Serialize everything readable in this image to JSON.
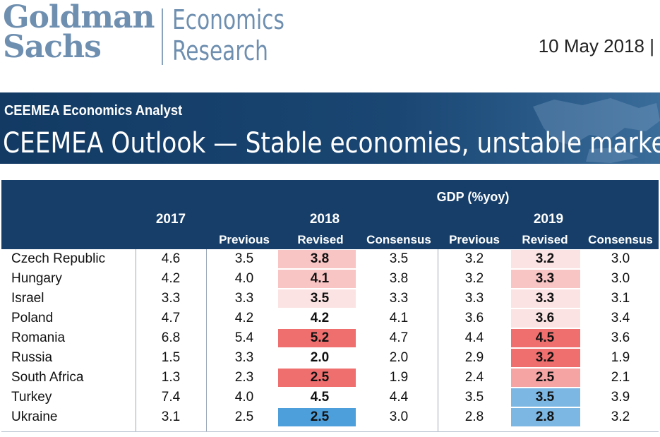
{
  "header": {
    "logo_line1": "Goldman",
    "logo_line2": "Sachs",
    "division_line1": "Economics",
    "division_line2": "Research",
    "date": "10 May 2018 |"
  },
  "banner": {
    "series": "CEEMEA Economics Analyst",
    "headline": "CEEMEA Outlook — Stable economies, unstable markets"
  },
  "table": {
    "group_title": "GDP (%yoy)",
    "years": {
      "y2017": "2017",
      "y2018": "2018",
      "y2019": "2019"
    },
    "subheaders": {
      "prev2018": "Previous",
      "rev2018": "Revised",
      "cons2018": "Consensus",
      "prev2019": "Previous",
      "rev2019": "Revised",
      "cons2019": "Consensus"
    },
    "highlight_colors": {
      "red_strong": "#ef6f6f",
      "red_medium": "#f5a3a3",
      "red_light": "#f8c4c4",
      "red_faint": "#fbe3e3",
      "blue_strong": "#4d9fdc",
      "blue_light": "#7cb6e3"
    },
    "rows": [
      {
        "country": "Czech Republic",
        "v2017": "4.6",
        "prev2018": "3.5",
        "rev2018": "3.8",
        "cons2018": "3.5",
        "prev2019": "3.2",
        "rev2019": "3.2",
        "cons2019": "3.0",
        "hl2018": "#f8c4c4",
        "hl2019": "#fbe3e3"
      },
      {
        "country": "Hungary",
        "v2017": "4.2",
        "prev2018": "4.0",
        "rev2018": "4.1",
        "cons2018": "3.8",
        "prev2019": "3.2",
        "rev2019": "3.3",
        "cons2019": "3.0",
        "hl2018": "#f8c4c4",
        "hl2019": "#f8c4c4"
      },
      {
        "country": "Israel",
        "v2017": "3.3",
        "prev2018": "3.3",
        "rev2018": "3.5",
        "cons2018": "3.3",
        "prev2019": "3.3",
        "rev2019": "3.3",
        "cons2019": "3.1",
        "hl2018": "#fbe3e3",
        "hl2019": "#fbe3e3"
      },
      {
        "country": "Poland",
        "v2017": "4.7",
        "prev2018": "4.2",
        "rev2018": "4.2",
        "cons2018": "4.1",
        "prev2019": "3.6",
        "rev2019": "3.6",
        "cons2019": "3.4",
        "hl2018": "",
        "hl2019": "#fbe3e3"
      },
      {
        "country": "Romania",
        "v2017": "6.8",
        "prev2018": "5.4",
        "rev2018": "5.2",
        "cons2018": "4.7",
        "prev2019": "4.4",
        "rev2019": "4.5",
        "cons2019": "3.6",
        "hl2018": "#ef6f6f",
        "hl2019": "#ef6f6f"
      },
      {
        "country": "Russia",
        "v2017": "1.5",
        "prev2018": "3.3",
        "rev2018": "2.0",
        "cons2018": "2.0",
        "prev2019": "2.9",
        "rev2019": "3.2",
        "cons2019": "1.9",
        "hl2018": "",
        "hl2019": "#ef6f6f"
      },
      {
        "country": "South Africa",
        "v2017": "1.3",
        "prev2018": "2.3",
        "rev2018": "2.5",
        "cons2018": "1.9",
        "prev2019": "2.4",
        "rev2019": "2.5",
        "cons2019": "2.1",
        "hl2018": "#ef6f6f",
        "hl2019": "#f5a3a3"
      },
      {
        "country": "Turkey",
        "v2017": "7.4",
        "prev2018": "4.0",
        "rev2018": "4.5",
        "cons2018": "4.4",
        "prev2019": "3.5",
        "rev2019": "3.5",
        "cons2019": "3.9",
        "hl2018": "",
        "hl2019": "#7cb6e3"
      },
      {
        "country": "Ukraine",
        "v2017": "3.1",
        "prev2018": "2.5",
        "rev2018": "2.5",
        "cons2018": "3.0",
        "prev2019": "2.8",
        "rev2019": "2.8",
        "cons2019": "3.2",
        "hl2018": "#4d9fdc",
        "hl2019": "#7cb6e3"
      }
    ]
  }
}
